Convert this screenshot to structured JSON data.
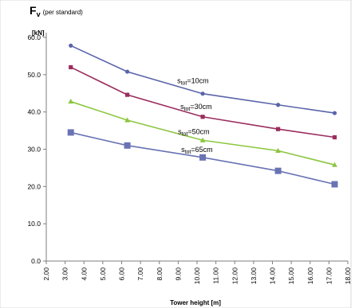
{
  "chart_data": {
    "type": "line",
    "ylabel_main": "F",
    "ylabel_sub": "v",
    "ylabel_note": "(per standard)",
    "yunit": "[kN]",
    "xlabel": "Tower height [m]",
    "xlim": [
      2.0,
      18.0
    ],
    "ylim": [
      0.0,
      60.0
    ],
    "x_ticks": [
      "2.00",
      "3.00",
      "4.00",
      "5.00",
      "6.00",
      "7.00",
      "8.00",
      "9.00",
      "10.00",
      "11.00",
      "12.00",
      "13.00",
      "14.00",
      "15.00",
      "16.00",
      "17.00",
      "18.00"
    ],
    "y_ticks": [
      "0.0",
      "10.0",
      "20.0",
      "30.0",
      "40.0",
      "50.0",
      "60.0"
    ],
    "grid": false,
    "series": [
      {
        "name": "stot=10cm",
        "label_prefix": "s",
        "label_sub": "tot",
        "label_suffix": "=10cm",
        "color": "#5a64aa",
        "marker": "circle",
        "x": [
          3.3,
          6.3,
          10.3,
          14.3,
          17.3
        ],
        "y": [
          57.8,
          50.8,
          44.9,
          41.9,
          39.7
        ]
      },
      {
        "name": "stot=30cm",
        "label_prefix": "s",
        "label_sub": "tot",
        "label_suffix": "=30cm",
        "color": "#9b2d5f",
        "marker": "square",
        "x": [
          3.3,
          6.3,
          10.3,
          14.3,
          17.3
        ],
        "y": [
          52.0,
          44.6,
          38.7,
          35.4,
          33.2
        ]
      },
      {
        "name": "stot=50cm",
        "label_prefix": "s",
        "label_sub": "tot",
        "label_suffix": "=50cm",
        "color": "#8cc63f",
        "marker": "triangle",
        "x": [
          3.3,
          6.3,
          10.3,
          14.3,
          17.3
        ],
        "y": [
          42.8,
          37.8,
          32.4,
          29.6,
          25.8
        ]
      },
      {
        "name": "stot=65cm",
        "label_prefix": "s",
        "label_sub": "tot",
        "label_suffix": "=65cm",
        "color": "#6973b4",
        "marker": "bigsquare",
        "x": [
          3.3,
          6.3,
          10.3,
          14.3,
          17.3
        ],
        "y": [
          34.5,
          31.0,
          27.8,
          24.2,
          20.6
        ]
      }
    ]
  }
}
